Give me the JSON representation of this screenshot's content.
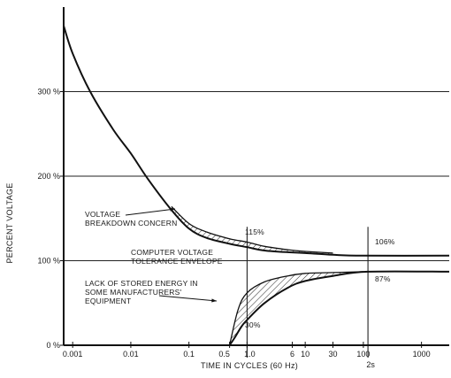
{
  "chart_data": {
    "type": "line",
    "title": "",
    "xlabel": "TIME IN CYCLES (60 Hz)",
    "ylabel": "PERCENT VOLTAGE",
    "x_scale": "log",
    "xlim": [
      0.0007,
      3000
    ],
    "ylim": [
      0,
      400
    ],
    "x_tick_labels": [
      {
        "x": 0.001,
        "label": "0.001"
      },
      {
        "x": 0.01,
        "label": "0.01"
      },
      {
        "x": 0.1,
        "label": "0.1"
      },
      {
        "x": 0.5,
        "label": "0.5"
      },
      {
        "x": 1,
        "label": "1.0"
      },
      {
        "x": 6,
        "label": "6"
      },
      {
        "x": 10,
        "label": "10"
      },
      {
        "x": 30,
        "label": "30"
      },
      {
        "x": 100,
        "label": "100"
      },
      {
        "x": 1000,
        "label": "1000"
      }
    ],
    "x_extra_label": {
      "x": 120,
      "label": "2s"
    },
    "y_ticks": [
      {
        "y": 0,
        "label": "0 %"
      },
      {
        "y": 100,
        "label": "100 %"
      },
      {
        "y": 200,
        "label": "200 %"
      },
      {
        "y": 300,
        "label": "300 %"
      }
    ],
    "gridlines_y": [
      100,
      200,
      300
    ],
    "grid": "horizontal",
    "reference_lines_x": [
      1,
      120
    ],
    "series": [
      {
        "role": "upper_limit",
        "x": [
          0.0007,
          0.001,
          0.002,
          0.005,
          0.01,
          0.02,
          0.05,
          0.1,
          0.2,
          0.5,
          1,
          2,
          5,
          10,
          30,
          100,
          3000
        ],
        "y": [
          378,
          345,
          300,
          255,
          227,
          196,
          160,
          138,
          127,
          120,
          116,
          112,
          110,
          109,
          107,
          106,
          106
        ]
      },
      {
        "role": "breakdown_concern_curve",
        "x": [
          0.05,
          0.1,
          0.2,
          0.5,
          1,
          2,
          5,
          10,
          30
        ],
        "y": [
          164,
          144,
          134,
          126,
          122,
          117,
          113,
          111,
          109
        ]
      },
      {
        "role": "lower_limit",
        "x": [
          0.5,
          0.6,
          0.8,
          1,
          2,
          5,
          10,
          30,
          120,
          3000
        ],
        "y": [
          0,
          8,
          22,
          30,
          50,
          68,
          76,
          82,
          87,
          87
        ]
      },
      {
        "role": "stored_energy_curve",
        "x": [
          0.5,
          0.7,
          1,
          2,
          5,
          10,
          30,
          100
        ],
        "y": [
          0,
          42,
          62,
          75,
          82,
          85,
          86,
          87
        ]
      }
    ],
    "annotations": [
      {
        "text": [
          "VOLTAGE",
          "BREAKDOWN CONCERN"
        ]
      },
      {
        "text": [
          "COMPUTER VOLTAGE",
          "TOLERANCE ENVELOPE"
        ]
      },
      {
        "text": [
          "LACK OF STORED ENERGY IN",
          "SOME MANUFACTURERS'",
          "EQUIPMENT"
        ]
      },
      {
        "text": "115%"
      },
      {
        "text": "106%"
      },
      {
        "text": "87%"
      },
      {
        "text": "30%"
      }
    ]
  }
}
